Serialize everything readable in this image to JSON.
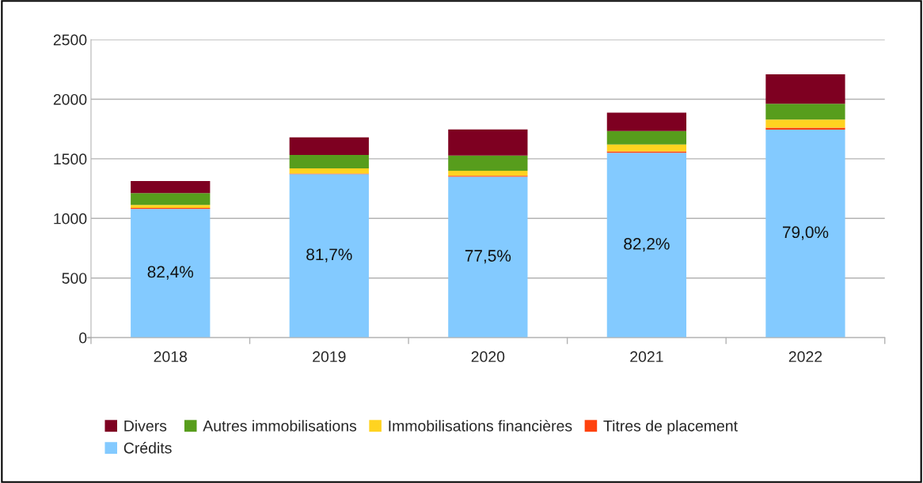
{
  "chart_data": {
    "type": "bar",
    "stacked": true,
    "categories": [
      "2018",
      "2019",
      "2020",
      "2021",
      "2022"
    ],
    "series": [
      {
        "name": "Crédits",
        "color": "#83caff",
        "values": [
          1080,
          1372,
          1350,
          1550,
          1745
        ]
      },
      {
        "name": "Titres de placement",
        "color": "#ff420e",
        "values": [
          8,
          5,
          8,
          12,
          17
        ]
      },
      {
        "name": "Immobilisations financières",
        "color": "#ffd320",
        "values": [
          25,
          43,
          42,
          58,
          67
        ]
      },
      {
        "name": "Autres immobilisations",
        "color": "#579d1c",
        "values": [
          100,
          113,
          127,
          113,
          133
        ]
      },
      {
        "name": "Divers",
        "color": "#7e0021",
        "values": [
          100,
          147,
          220,
          154,
          247
        ]
      }
    ],
    "ylim": [
      0,
      2500
    ],
    "yticks": [
      0,
      500,
      1000,
      1500,
      2000,
      2500
    ],
    "annotations": [
      "82,4%",
      "81,7%",
      "77,5%",
      "82,2%",
      "79,0%"
    ],
    "grid": "y",
    "legend": "bottom"
  }
}
